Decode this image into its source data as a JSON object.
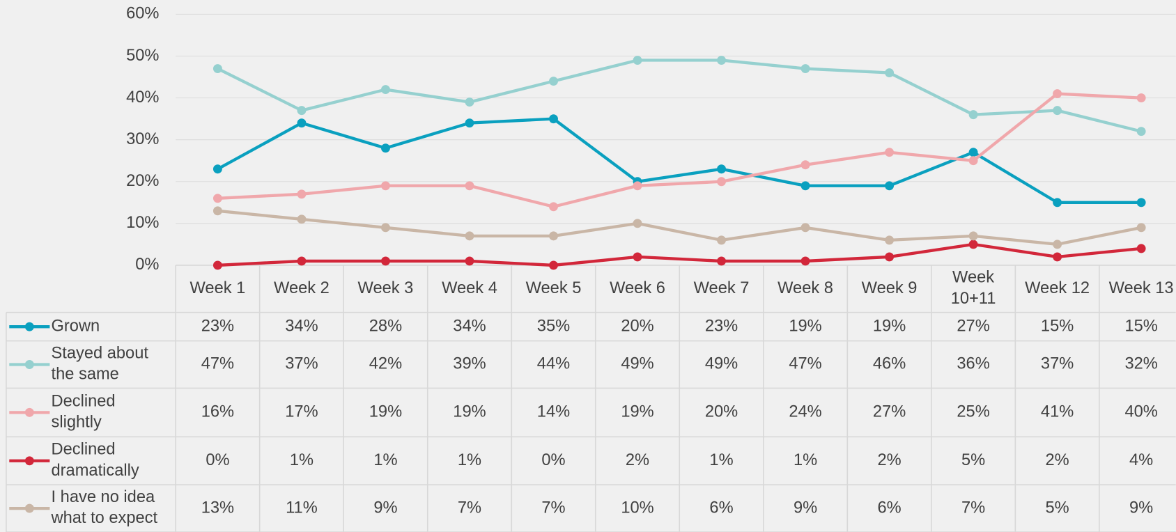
{
  "chart_data": {
    "type": "line",
    "categories": [
      "Week 1",
      "Week 2",
      "Week 3",
      "Week 4",
      "Week 5",
      "Week 6",
      "Week 7",
      "Week 8",
      "Week 9",
      "Week 10+11",
      "Week 12",
      "Week 13"
    ],
    "ylim": [
      0,
      60
    ],
    "yticks": [
      {
        "value": 0,
        "label": "0%"
      },
      {
        "value": 10,
        "label": "10%"
      },
      {
        "value": 20,
        "label": "20%"
      },
      {
        "value": 30,
        "label": "30%"
      },
      {
        "value": 40,
        "label": "40%"
      },
      {
        "value": 50,
        "label": "50%"
      },
      {
        "value": 60,
        "label": "60%"
      }
    ],
    "grid": true,
    "series": [
      {
        "name": "Grown",
        "color": "#0aa0bf",
        "values": [
          23,
          34,
          28,
          34,
          35,
          20,
          23,
          19,
          19,
          27,
          15,
          15
        ],
        "value_labels": [
          "23%",
          "34%",
          "28%",
          "34%",
          "35%",
          "20%",
          "23%",
          "19%",
          "19%",
          "27%",
          "15%",
          "15%"
        ]
      },
      {
        "name": "Stayed about the same",
        "color": "#95d0cf",
        "values": [
          47,
          37,
          42,
          39,
          44,
          49,
          49,
          47,
          46,
          36,
          37,
          32
        ],
        "value_labels": [
          "47%",
          "37%",
          "42%",
          "39%",
          "44%",
          "49%",
          "49%",
          "47%",
          "46%",
          "36%",
          "37%",
          "32%"
        ]
      },
      {
        "name": "Declined slightly",
        "color": "#f0a7ab",
        "values": [
          16,
          17,
          19,
          19,
          14,
          19,
          20,
          24,
          27,
          25,
          41,
          40
        ],
        "value_labels": [
          "16%",
          "17%",
          "19%",
          "19%",
          "14%",
          "19%",
          "20%",
          "24%",
          "27%",
          "25%",
          "41%",
          "40%"
        ]
      },
      {
        "name": "Declined dramatically",
        "color": "#d2273a",
        "values": [
          0,
          1,
          1,
          1,
          0,
          2,
          1,
          1,
          2,
          5,
          2,
          4
        ],
        "value_labels": [
          "0%",
          "1%",
          "1%",
          "1%",
          "0%",
          "2%",
          "1%",
          "1%",
          "2%",
          "5%",
          "2%",
          "4%"
        ]
      },
      {
        "name": "I have no idea what to expect",
        "color": "#c9b6a6",
        "values": [
          13,
          11,
          9,
          7,
          7,
          10,
          6,
          9,
          6,
          7,
          5,
          9
        ],
        "value_labels": [
          "13%",
          "11%",
          "9%",
          "7%",
          "7%",
          "10%",
          "6%",
          "9%",
          "6%",
          "7%",
          "5%",
          "9%"
        ]
      }
    ]
  }
}
